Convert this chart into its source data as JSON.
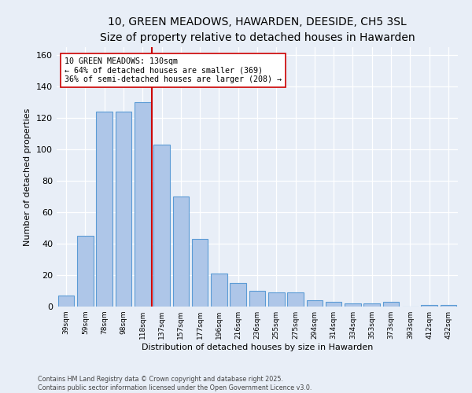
{
  "title": "10, GREEN MEADOWS, HAWARDEN, DEESIDE, CH5 3SL",
  "subtitle": "Size of property relative to detached houses in Hawarden",
  "xlabel": "Distribution of detached houses by size in Hawarden",
  "ylabel": "Number of detached properties",
  "bar_labels": [
    "39sqm",
    "59sqm",
    "78sqm",
    "98sqm",
    "118sqm",
    "137sqm",
    "157sqm",
    "177sqm",
    "196sqm",
    "216sqm",
    "236sqm",
    "255sqm",
    "275sqm",
    "294sqm",
    "314sqm",
    "334sqm",
    "353sqm",
    "373sqm",
    "393sqm",
    "412sqm",
    "432sqm"
  ],
  "bar_values": [
    7,
    45,
    124,
    124,
    130,
    103,
    70,
    43,
    21,
    15,
    10,
    9,
    9,
    4,
    3,
    2,
    2,
    3,
    0,
    1,
    1
  ],
  "bar_color": "#aec6e8",
  "bar_edge_color": "#5b9bd5",
  "vline_color": "#cc0000",
  "annotation_text": "10 GREEN MEADOWS: 130sqm\n← 64% of detached houses are smaller (369)\n36% of semi-detached houses are larger (208) →",
  "annotation_box_color": "#ffffff",
  "annotation_box_edge": "#cc0000",
  "ylim": [
    0,
    165
  ],
  "yticks": [
    0,
    20,
    40,
    60,
    80,
    100,
    120,
    140,
    160
  ],
  "footer_line1": "Contains HM Land Registry data © Crown copyright and database right 2025.",
  "footer_line2": "Contains public sector information licensed under the Open Government Licence v3.0.",
  "background_color": "#e8eef7",
  "plot_bg_color": "#e8eef7",
  "title_fontsize": 10,
  "subtitle_fontsize": 9
}
